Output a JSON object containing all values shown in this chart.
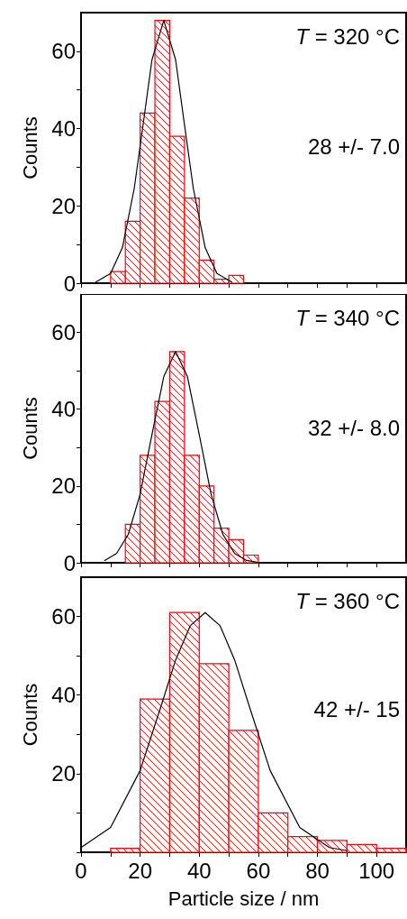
{
  "chart_data": [
    {
      "type": "histogram",
      "ylabel": "Counts",
      "bins": [
        10,
        15,
        20,
        25,
        30,
        35,
        40,
        45,
        50,
        55
      ],
      "values": [
        3,
        16,
        44,
        68,
        38,
        22,
        6,
        1,
        2
      ],
      "color": "#ff0000",
      "series": [
        {
          "type": "line",
          "color": "#000000",
          "x": [
            5,
            10,
            14,
            18,
            21,
            24,
            28,
            32,
            35,
            38,
            42,
            46,
            51
          ],
          "values": [
            0.3,
            2.5,
            9.2,
            24.5,
            41,
            57.8,
            68,
            57.8,
            41,
            24.5,
            9.2,
            2.5,
            0.3
          ]
        }
      ],
      "xlim": [
        0,
        110
      ],
      "xticks": [
        {
          "value": 0,
          "label": null
        },
        {
          "value": 10,
          "label": null
        },
        {
          "value": 20,
          "label": null
        },
        {
          "value": 30,
          "label": null
        },
        {
          "value": 40,
          "label": null
        },
        {
          "value": 50,
          "label": null
        },
        {
          "value": 60,
          "label": null
        },
        {
          "value": 70,
          "label": null
        },
        {
          "value": 80,
          "label": null
        },
        {
          "value": 90,
          "label": null
        },
        {
          "value": 100,
          "label": null
        }
      ],
      "ylim": [
        0,
        70
      ],
      "yticks": [
        0,
        {
          "value": 10,
          "label": null
        },
        20,
        {
          "value": 30,
          "label": null
        },
        40,
        {
          "value": 50,
          "label": null
        },
        60
      ],
      "tick_labels": "y",
      "grid": false,
      "legend": false,
      "annotations": [
        "T = 320 °C",
        "28 +/- 7.0"
      ]
    },
    {
      "type": "histogram",
      "ylabel": "Counts",
      "bins": [
        15,
        20,
        25,
        30,
        35,
        40,
        45,
        50,
        55,
        60
      ],
      "values": [
        10,
        28,
        42,
        55,
        28,
        20,
        9,
        6,
        2
      ],
      "color": "#ff0000",
      "series": [
        {
          "type": "line",
          "color": "#000000",
          "x": [
            8,
            12,
            16,
            20,
            24,
            28,
            32,
            36,
            40,
            44,
            48,
            52,
            56,
            60
          ],
          "values": [
            0.6,
            2.4,
            7.4,
            17.9,
            33.4,
            48.5,
            55,
            48.5,
            33.4,
            17.9,
            7.4,
            2.4,
            0.6,
            0.1
          ]
        }
      ],
      "xlim": [
        0,
        110
      ],
      "xticks": [
        {
          "value": 0,
          "label": null
        },
        {
          "value": 10,
          "label": null
        },
        {
          "value": 20,
          "label": null
        },
        {
          "value": 30,
          "label": null
        },
        {
          "value": 40,
          "label": null
        },
        {
          "value": 50,
          "label": null
        },
        {
          "value": 60,
          "label": null
        },
        {
          "value": 70,
          "label": null
        },
        {
          "value": 80,
          "label": null
        },
        {
          "value": 90,
          "label": null
        },
        {
          "value": 100,
          "label": null
        }
      ],
      "ylim": [
        0,
        70
      ],
      "yticks": [
        0,
        {
          "value": 10,
          "label": null
        },
        20,
        {
          "value": 30,
          "label": null
        },
        40,
        {
          "value": 50,
          "label": null
        },
        60
      ],
      "tick_labels": "y",
      "grid": false,
      "legend": false,
      "annotations": [
        "T = 340 °C",
        "32 +/- 8.0"
      ]
    },
    {
      "type": "histogram",
      "xlabel": "Particle size / nm",
      "ylabel": "Counts",
      "bins": [
        10,
        20,
        30,
        40,
        50,
        60,
        70,
        80,
        90,
        100,
        110
      ],
      "values": [
        1,
        39,
        61,
        48,
        31,
        10,
        4,
        3,
        2,
        1
      ],
      "color": "#ff0000",
      "series": [
        {
          "type": "line",
          "color": "#000000",
          "x": [
            0,
            10,
            20,
            27,
            32,
            37,
            42,
            47,
            52,
            57,
            64,
            74,
            84,
            90
          ],
          "values": [
            1.2,
            6.3,
            20.8,
            37,
            48.9,
            57.7,
            61,
            57.7,
            48.9,
            37,
            20.8,
            6.3,
            1.2,
            0.4
          ]
        }
      ],
      "xlim": [
        0,
        110
      ],
      "xticks": [
        0,
        {
          "value": 10,
          "label": null
        },
        20,
        {
          "value": 30,
          "label": null
        },
        40,
        {
          "value": 50,
          "label": null
        },
        60,
        {
          "value": 70,
          "label": null
        },
        80,
        {
          "value": 90,
          "label": null
        },
        100
      ],
      "ylim": [
        0,
        70
      ],
      "yticks": [
        {
          "value": 0,
          "label": null
        },
        {
          "value": 10,
          "label": null
        },
        20,
        {
          "value": 30,
          "label": null
        },
        40,
        {
          "value": 50,
          "label": null
        },
        60
      ],
      "grid": false,
      "legend": false,
      "annotations": [
        "T = 360 °C",
        "42 +/- 15"
      ]
    }
  ]
}
